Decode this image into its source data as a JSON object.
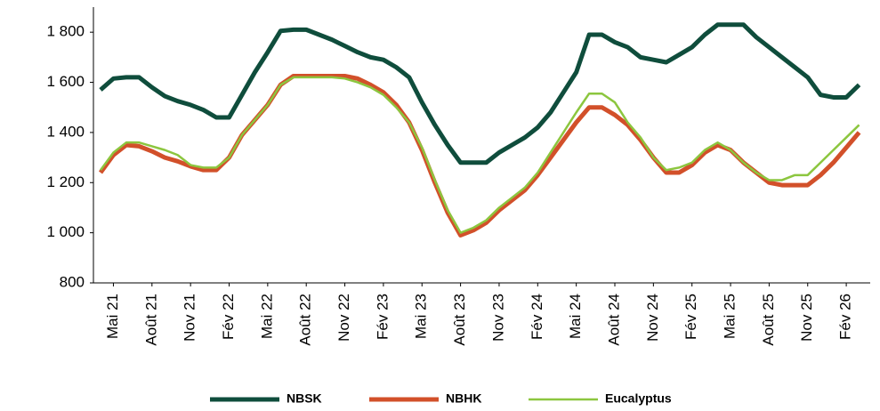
{
  "chart_data": {
    "type": "line",
    "categories": [
      null,
      "Mai 21",
      null,
      null,
      "Août 21",
      null,
      null,
      "Nov 21",
      null,
      null,
      "Fév 22",
      null,
      null,
      "Mai 22",
      null,
      null,
      "Août 22",
      null,
      null,
      "Nov 22",
      null,
      null,
      "Fév 23",
      null,
      null,
      "Mai 23",
      null,
      null,
      "Août 23",
      null,
      null,
      "Nov 23",
      null,
      null,
      "Fév 24",
      null,
      null,
      "Mai 24",
      null,
      null,
      "Août 24",
      null,
      null,
      "Nov 24",
      null,
      null,
      "Fév 25",
      null,
      null,
      "Mai 25",
      null,
      null,
      "Août 25",
      null,
      null,
      "Nov 25",
      null,
      null,
      "Fév 26",
      null
    ],
    "series": [
      {
        "name": "NBSK",
        "color": "#0f4d3c",
        "values": [
          1570,
          1615,
          1620,
          1620,
          1580,
          1545,
          1525,
          1510,
          1490,
          1460,
          1460,
          1550,
          1640,
          1720,
          1805,
          1810,
          1810,
          1790,
          1770,
          1745,
          1720,
          1700,
          1690,
          1660,
          1620,
          1520,
          1430,
          1350,
          1280,
          1280,
          1280,
          1320,
          1350,
          1380,
          1420,
          1480,
          1560,
          1640,
          1790,
          1790,
          1760,
          1740,
          1700,
          1690,
          1680,
          1710,
          1740,
          1790,
          1830,
          1830,
          1830,
          1780,
          1740,
          1700,
          1660,
          1620,
          1550,
          1540,
          1540,
          1590
        ]
      },
      {
        "name": "NBHK",
        "color": "#d2502a",
        "values": [
          1240,
          1310,
          1350,
          1345,
          1325,
          1300,
          1285,
          1265,
          1250,
          1250,
          1300,
          1390,
          1450,
          1510,
          1590,
          1625,
          1625,
          1625,
          1625,
          1625,
          1615,
          1590,
          1560,
          1510,
          1440,
          1330,
          1200,
          1080,
          990,
          1010,
          1040,
          1090,
          1130,
          1170,
          1230,
          1300,
          1370,
          1440,
          1500,
          1500,
          1470,
          1430,
          1370,
          1300,
          1240,
          1240,
          1270,
          1320,
          1350,
          1330,
          1280,
          1240,
          1200,
          1190,
          1190,
          1190,
          1230,
          1280,
          1340,
          1400
        ]
      },
      {
        "name": "Eucalyptus",
        "color": "#8cc63f",
        "values": [
          1250,
          1320,
          1360,
          1360,
          1345,
          1330,
          1310,
          1270,
          1260,
          1260,
          1300,
          1390,
          1450,
          1510,
          1590,
          1620,
          1620,
          1620,
          1620,
          1615,
          1600,
          1580,
          1550,
          1500,
          1440,
          1340,
          1210,
          1090,
          1000,
          1020,
          1050,
          1100,
          1140,
          1180,
          1240,
          1320,
          1400,
          1480,
          1555,
          1555,
          1520,
          1440,
          1380,
          1300,
          1250,
          1260,
          1280,
          1330,
          1360,
          1330,
          1280,
          1240,
          1210,
          1210,
          1230,
          1230,
          1280,
          1330,
          1380,
          1430
        ]
      }
    ],
    "ylim": [
      800,
      1900
    ],
    "yticks": [
      800,
      {
        "value": 1000,
        "label": "1 000"
      },
      {
        "value": 1200,
        "label": "1 200"
      },
      {
        "value": 1400,
        "label": "1 400"
      },
      {
        "value": 1600,
        "label": "1 600"
      },
      {
        "value": 1800,
        "label": "1 800"
      }
    ],
    "grid": false
  }
}
